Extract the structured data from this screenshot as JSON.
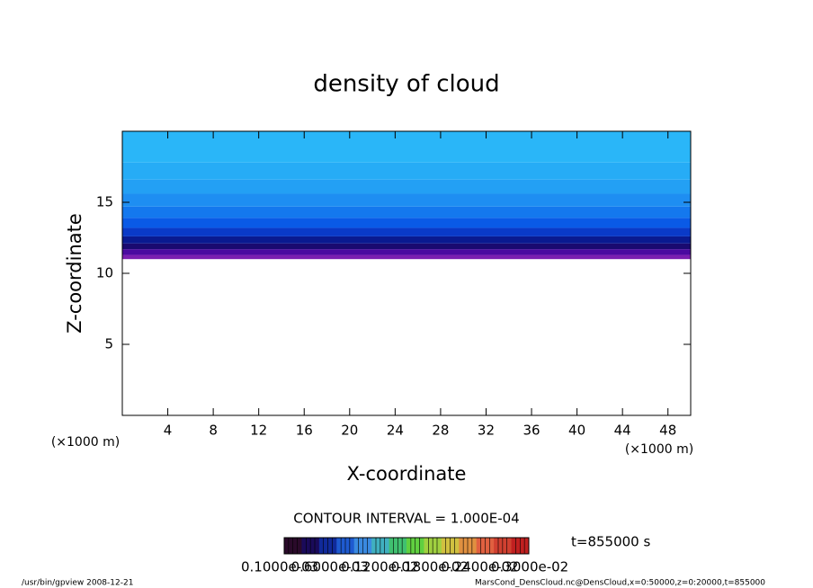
{
  "chart_data": {
    "type": "contour",
    "title": "density of cloud",
    "xlabel": "X-coordinate",
    "ylabel": "Z-coordinate",
    "xunit": "(×1000 m)",
    "yunit": "(×1000 m)",
    "xlim": [
      0,
      50
    ],
    "ylim": [
      0,
      20
    ],
    "xticks": [
      4,
      8,
      12,
      16,
      20,
      24,
      28,
      32,
      36,
      40,
      44,
      48
    ],
    "yticks": [
      5,
      10,
      15
    ],
    "zbands": [
      11,
      11.3,
      11.7,
      12.1,
      12.6,
      13.2,
      13.9,
      14.7,
      15.6,
      16.6,
      17.8,
      20
    ],
    "band_colors": [
      "#7a1fb0",
      "#4a0aa0",
      "#1a0a70",
      "#0a1a90",
      "#0a3ac8",
      "#0a5ae6",
      "#1478ee",
      "#1e8ef2",
      "#23a0f4",
      "#26acf6",
      "#2ab6f8"
    ],
    "contour_interval": "CONTOUR INTERVAL = 1.000E-04",
    "time_label": "t=855000 s",
    "colorbar_colors": [
      "#2a0a2a",
      "#1a0a5a",
      "#102a9a",
      "#1e5ad0",
      "#3a8ae0",
      "#40b0c0",
      "#40c070",
      "#60d040",
      "#a0d040",
      "#d0c040",
      "#e09040",
      "#e06040",
      "#d04030",
      "#c02020"
    ],
    "colorbar_labels": [
      "0.1000e-03",
      "0.6000e-03",
      "0.1200e-02",
      "0.1800e-02",
      "0.2400e-02",
      "0.3000e-02"
    ],
    "footer_left": "/usr/bin/gpview   2008-12-21",
    "footer_right": "MarsCond_DensCloud.nc@DensCloud,x=0:50000,z=0:20000,t=855000"
  }
}
